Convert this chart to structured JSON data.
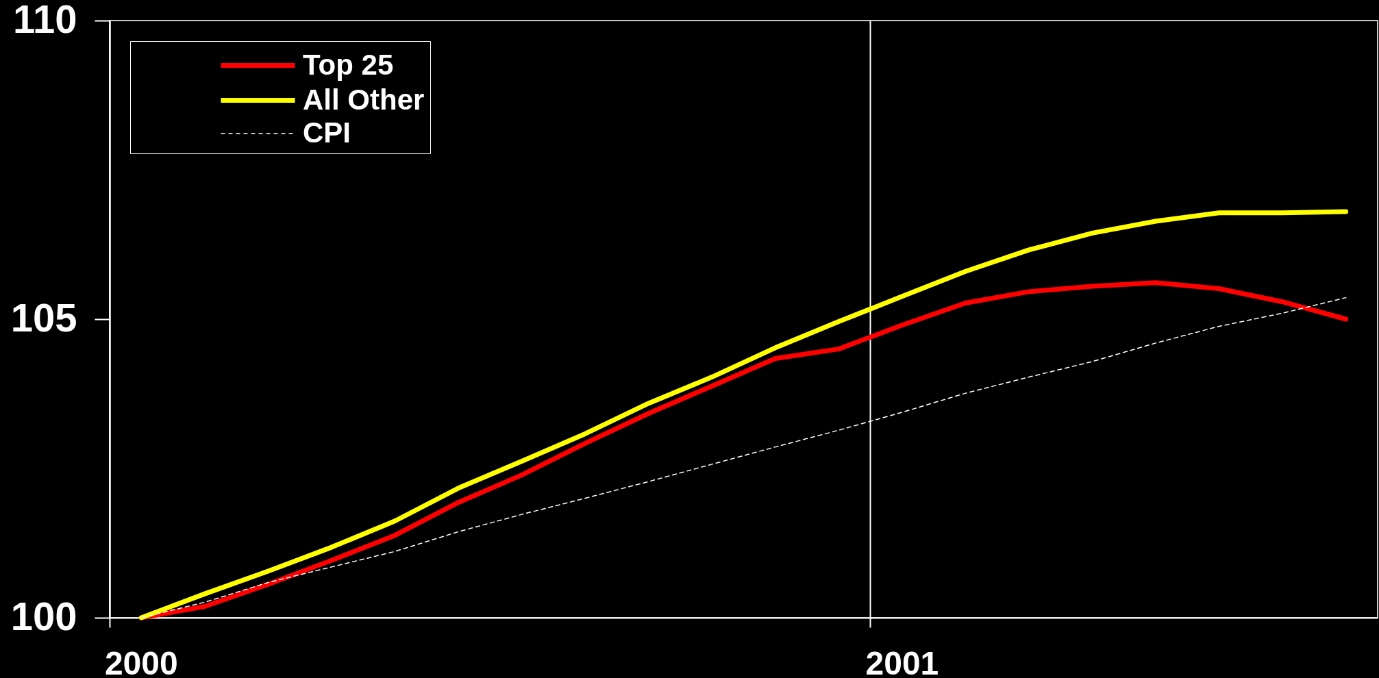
{
  "chart_data": {
    "type": "line",
    "categories": [
      "2000",
      null,
      null,
      null,
      null,
      null,
      null,
      null,
      null,
      null,
      null,
      null,
      "2001",
      null,
      null,
      null,
      null,
      null,
      null,
      null
    ],
    "series": [
      {
        "name": "Top 25",
        "color": "#ff0000",
        "line_style": "solid",
        "values": [
          100.0,
          100.19,
          100.56,
          100.96,
          101.38,
          101.93,
          102.39,
          102.92,
          103.42,
          103.88,
          104.34,
          104.5,
          104.9,
          105.27,
          105.46,
          105.55,
          105.61,
          105.51,
          105.29,
          105.0
        ]
      },
      {
        "name": "All Other",
        "color": "#ffff00",
        "line_style": "solid",
        "values": [
          100.0,
          100.4,
          100.78,
          101.18,
          101.62,
          102.17,
          102.62,
          103.08,
          103.59,
          104.03,
          104.52,
          104.96,
          105.38,
          105.8,
          106.16,
          106.44,
          106.64,
          106.78,
          106.78,
          106.8
        ]
      },
      {
        "name": "CPI",
        "color": "#ffffff",
        "line_style": "dashed",
        "values": [
          100.0,
          100.26,
          100.59,
          100.85,
          101.11,
          101.44,
          101.73,
          102.0,
          102.28,
          102.57,
          102.86,
          103.14,
          103.44,
          103.76,
          104.03,
          104.29,
          104.6,
          104.88,
          105.1,
          105.36
        ]
      }
    ],
    "ylim": [
      100,
      110
    ],
    "yticks": [
      100,
      105,
      110
    ],
    "grid": "x",
    "legend": "top left"
  }
}
